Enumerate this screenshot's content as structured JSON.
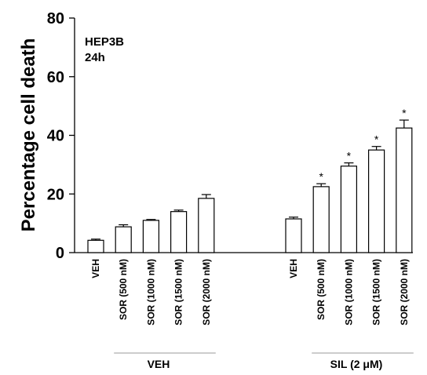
{
  "chart_data": {
    "type": "bar",
    "ylabel": "Percentage cell death",
    "xlabel": "",
    "ylim": [
      0,
      80
    ],
    "yticks": [
      "0",
      "20",
      "40",
      "60",
      "80"
    ],
    "annotations": [
      "HEP3B",
      "24h"
    ],
    "groups": [
      {
        "name": "VEH",
        "categories": [
          "VEH",
          "SOR (500 nM)",
          "SOR (1000 nM)",
          "SOR (1500 nM)",
          "SOR (2000 nM)"
        ],
        "values": [
          4.2,
          8.8,
          11.0,
          14.0,
          18.5
        ],
        "errors": [
          0.4,
          0.7,
          0.3,
          0.5,
          1.3
        ],
        "significant": [
          false,
          false,
          false,
          false,
          false
        ]
      },
      {
        "name": "SIL (2 μM)",
        "categories": [
          "VEH",
          "SOR (500 nM)",
          "SOR (1000 nM)",
          "SOR (1500 nM)",
          "SOR (2000 nM)"
        ],
        "values": [
          11.5,
          22.5,
          29.5,
          35.0,
          42.5
        ],
        "errors": [
          0.6,
          1.0,
          1.1,
          1.2,
          2.7
        ],
        "significant": [
          false,
          true,
          true,
          true,
          true
        ]
      }
    ],
    "significance_marker": "*",
    "colors": {
      "bar_fill": "#ffffff",
      "bar_stroke": "#000000",
      "axis": "#000000"
    }
  }
}
